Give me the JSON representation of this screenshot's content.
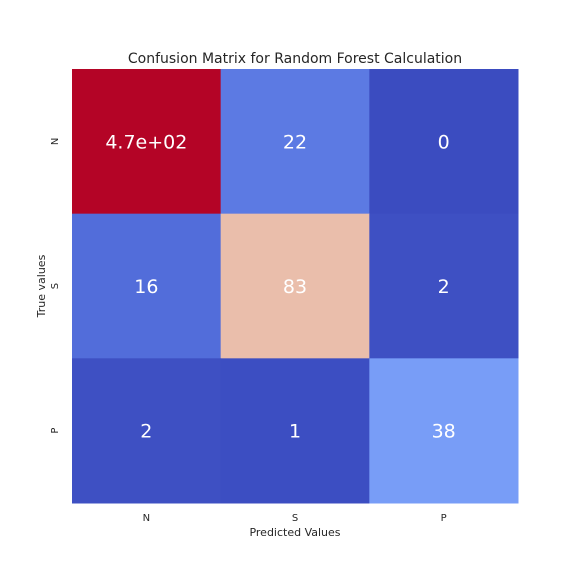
{
  "chart_data": {
    "type": "heatmap",
    "title": "Confusion Matrix for Random Forest Calculation",
    "xlabel": "Predicted Values",
    "ylabel": "True values",
    "x_categories": [
      "N",
      "S",
      "P"
    ],
    "y_categories": [
      "N",
      "S",
      "P"
    ],
    "values": [
      [
        470,
        22,
        0
      ],
      [
        16,
        83,
        2
      ],
      [
        2,
        1,
        38
      ]
    ],
    "annotations": [
      [
        "4.7e+02",
        "22",
        "0"
      ],
      [
        "16",
        "83",
        "2"
      ],
      [
        "2",
        "1",
        "38"
      ]
    ],
    "colormap": "coolwarm",
    "colorbar": false,
    "grid": false,
    "colors": {
      "low": "#3b4cc0",
      "mid": "#dddddd",
      "high": "#b40426"
    }
  }
}
